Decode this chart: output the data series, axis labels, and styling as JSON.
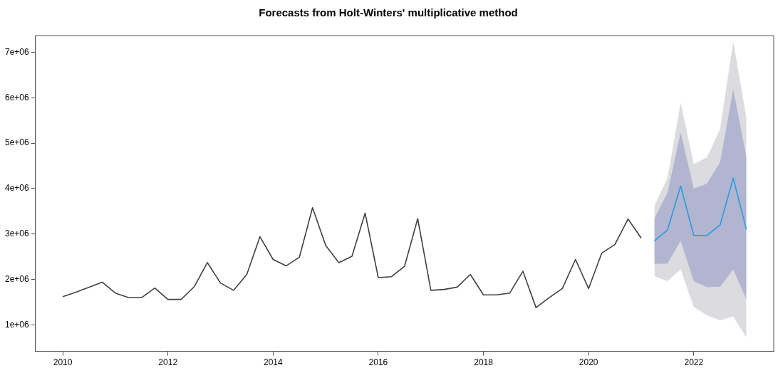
{
  "chart_data": {
    "type": "line",
    "title": "Forecasts from Holt-Winters' multiplicative method",
    "xlim": [
      2009.48,
      2023.52
    ],
    "xticks": [
      2010,
      2012,
      2014,
      2016,
      2018,
      2020,
      2022
    ],
    "ylim": [
      416000,
      7370000
    ],
    "yticks": [
      {
        "value": 1000000,
        "label": "1e+06"
      },
      {
        "value": 2000000,
        "label": "2e+06"
      },
      {
        "value": 3000000,
        "label": "3e+06"
      },
      {
        "value": 4000000,
        "label": "4e+06"
      },
      {
        "value": 5000000,
        "label": "5e+06"
      },
      {
        "value": 6000000,
        "label": "6e+06"
      },
      {
        "value": 7000000,
        "label": "7e+06"
      }
    ],
    "grid": false,
    "legend": false,
    "marker": "none",
    "line_style": "solid",
    "series": [
      {
        "type": "line",
        "color": "#dbdbe0",
        "x": [
          2021.25,
          2021.5,
          2021.75,
          2022,
          2022.25,
          2022.5,
          2022.75,
          2023
        ],
        "values": [
          null,
          null,
          null,
          null,
          null,
          null,
          null,
          null
        ],
        "lower": [
          2070000,
          1960000,
          2220000,
          1390000,
          1210000,
          1100000,
          1180000,
          720000
        ],
        "upper": [
          3620000,
          4230000,
          5890000,
          4540000,
          4690000,
          5310000,
          7240000,
          5550000
        ]
      },
      {
        "type": "line",
        "color": "#b1b5d0",
        "x": [
          2021.25,
          2021.5,
          2021.75,
          2022,
          2022.25,
          2022.5,
          2022.75,
          2023
        ],
        "values": [
          null,
          null,
          null,
          null,
          null,
          null,
          null,
          null
        ],
        "lower": [
          2340000,
          2350000,
          2850000,
          1960000,
          1830000,
          1840000,
          2220000,
          1560000
        ],
        "upper": [
          3340000,
          3910000,
          5230000,
          4000000,
          4110000,
          4580000,
          6190000,
          4690000
        ]
      },
      {
        "type": "line",
        "color": "#404040",
        "x": [
          2010,
          2010.25,
          2010.5,
          2010.75,
          2011,
          2011.25,
          2011.5,
          2011.75,
          2012,
          2012.25,
          2012.5,
          2012.75,
          2013,
          2013.25,
          2013.5,
          2013.75,
          2014,
          2014.25,
          2014.5,
          2014.75,
          2015,
          2015.25,
          2015.5,
          2015.75,
          2016,
          2016.25,
          2016.5,
          2016.75,
          2017,
          2017.25,
          2017.5,
          2017.75,
          2018,
          2018.25,
          2018.5,
          2018.75,
          2019,
          2019.25,
          2019.5,
          2019.75,
          2020,
          2020.25,
          2020.5,
          2020.75,
          2021
        ],
        "values": [
          1620000,
          1720000,
          1830000,
          1940000,
          1700000,
          1600000,
          1600000,
          1810000,
          1560000,
          1560000,
          1840000,
          2370000,
          1920000,
          1760000,
          2110000,
          2940000,
          2440000,
          2300000,
          2490000,
          3580000,
          2750000,
          2370000,
          2510000,
          3460000,
          2040000,
          2060000,
          2290000,
          3340000,
          1760000,
          1780000,
          1830000,
          2110000,
          1660000,
          1660000,
          1700000,
          2180000,
          1380000,
          1600000,
          1800000,
          2440000,
          1800000,
          2580000,
          2770000,
          3330000,
          2910000
        ]
      },
      {
        "type": "line",
        "color": "#2b9ae0",
        "x": [
          2021.25,
          2021.5,
          2021.75,
          2022,
          2022.25,
          2022.5,
          2022.75,
          2023
        ],
        "values": [
          2850000,
          3090000,
          4060000,
          2970000,
          2970000,
          3200000,
          4230000,
          3100000
        ]
      }
    ]
  }
}
